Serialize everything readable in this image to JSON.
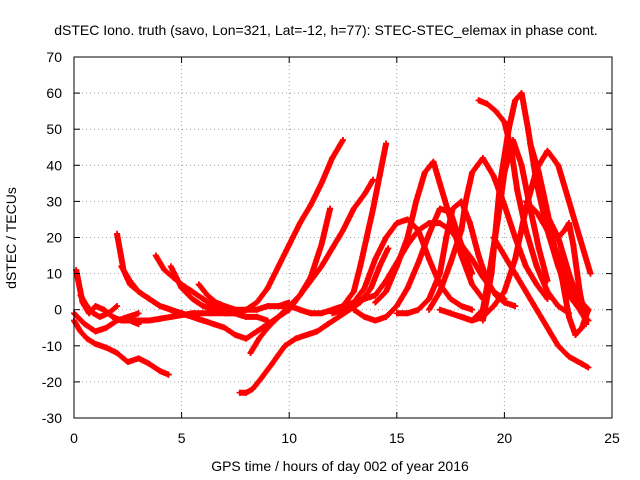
{
  "chart_data": {
    "type": "scatter",
    "title": "dSTEC Iono. truth (savo, Lon=321, Lat=-12, h=77): STEC-STEC_elemax in phase cont.",
    "xlabel": "GPS time / hours of day 002 of year 2016",
    "ylabel": "dSTEC  / TECUs",
    "xlim": [
      0,
      25
    ],
    "ylim": [
      -30,
      70
    ],
    "xticks": [
      "0",
      "5",
      "10",
      "15",
      "20",
      "25"
    ],
    "yticks": [
      "-30",
      "-20",
      "-10",
      "0",
      "10",
      "20",
      "30",
      "40",
      "50",
      "60",
      "70"
    ],
    "grid": true,
    "marker": "plus",
    "color": "#ff0000",
    "series": [
      {
        "x": [
          0.0,
          0.3,
          0.6,
          1.0,
          1.5,
          2.0,
          2.5,
          3.0,
          3.5,
          4.0,
          4.4
        ],
        "y": [
          -3,
          -6,
          -8,
          -9.5,
          -10.5,
          -12,
          -14.5,
          -13.5,
          -15,
          -17,
          -18
        ]
      },
      {
        "x": [
          0.1,
          0.2,
          0.4,
          0.7,
          1.0,
          1.4,
          1.8,
          2.2,
          2.6,
          3.0
        ],
        "y": [
          11,
          8,
          2,
          -1,
          1,
          0,
          -2,
          -3,
          -3,
          -4
        ]
      },
      {
        "x": [
          0.0,
          0.5,
          1.0,
          1.5,
          2.0,
          2.5,
          3.0
        ],
        "y": [
          -1,
          -4,
          -6,
          -5,
          -3,
          -2,
          -1
        ]
      },
      {
        "x": [
          0.3,
          0.6,
          0.9,
          1.2,
          1.6,
          2.0
        ],
        "y": [
          4,
          1,
          -1,
          -2,
          -1,
          1
        ]
      },
      {
        "x": [
          2.0,
          2.3,
          2.6,
          3.0,
          3.5,
          4.0,
          4.5,
          5.0,
          5.5,
          6.0
        ],
        "y": [
          21,
          11,
          7,
          5,
          3,
          1,
          0,
          -1,
          -2,
          -3
        ]
      },
      {
        "x": [
          2.2,
          2.6,
          3.0,
          3.5,
          4.0,
          4.5,
          5.0,
          5.5,
          6.0
        ],
        "y": [
          12,
          8,
          5,
          3,
          1,
          0,
          -1,
          -2,
          -3
        ]
      },
      {
        "x": [
          3.8,
          4.2,
          4.6,
          5.0,
          5.5,
          6.0,
          6.5,
          7.0,
          7.5,
          8.0
        ],
        "y": [
          15,
          11,
          9,
          7,
          5,
          3,
          1,
          0,
          -1,
          -2
        ]
      },
      {
        "x": [
          4.5,
          5.0,
          5.5,
          6.0,
          6.5,
          7.0,
          7.5,
          8.0,
          8.5,
          9.0
        ],
        "y": [
          12,
          6,
          3,
          1,
          0,
          -1,
          -1,
          -2,
          -2,
          -3
        ]
      },
      {
        "x": [
          2.5,
          3.0,
          3.5,
          4.0,
          4.5,
          5.0,
          5.5,
          6.0,
          6.5,
          7.0,
          7.5,
          8.0,
          8.5,
          9.0,
          9.5,
          10.0
        ],
        "y": [
          -3,
          -3,
          -3,
          -2.5,
          -2,
          -1.5,
          -1,
          -1,
          -1,
          -1,
          -1,
          0,
          0,
          1,
          1,
          2
        ]
      },
      {
        "x": [
          5.8,
          6.2,
          6.6,
          7.0,
          7.5,
          8.0,
          8.5,
          9.0,
          9.5,
          10.0,
          10.5,
          11.0,
          11.5,
          12.0,
          12.5
        ],
        "y": [
          7,
          4,
          2,
          1,
          0,
          0,
          2,
          6,
          12,
          18,
          24,
          29,
          35,
          42,
          47
        ]
      },
      {
        "x": [
          7.7,
          8.0,
          8.3,
          8.7,
          9.2,
          9.8,
          10.3,
          10.8,
          11.3,
          11.8,
          12.3,
          12.8,
          13.3,
          13.8,
          14.2,
          14.6
        ],
        "y": [
          -23,
          -23,
          -22,
          -19,
          -15,
          -10,
          -8,
          -7,
          -6,
          -4,
          -2,
          0,
          2,
          6,
          12,
          17
        ]
      },
      {
        "x": [
          6.0,
          6.5,
          7.0,
          7.5,
          8.0,
          8.5,
          9.0,
          9.5,
          10.0,
          10.5,
          11.0,
          11.5,
          11.9
        ],
        "y": [
          -3,
          -4,
          -5,
          -7,
          -8,
          -6,
          -4,
          -2,
          0,
          4,
          9,
          18,
          28
        ]
      },
      {
        "x": [
          8.2,
          8.6,
          9.0,
          9.5,
          10.0,
          10.5,
          11.0,
          11.5,
          12.0,
          12.5,
          13.0,
          13.5,
          13.9
        ],
        "y": [
          -12,
          -8,
          -5,
          -2,
          1,
          4,
          8,
          12,
          17,
          22,
          28,
          32,
          36
        ]
      },
      {
        "x": [
          9.5,
          10.0,
          10.5,
          11.0,
          11.5,
          12.0,
          12.5,
          13.0,
          13.3,
          13.6,
          13.9,
          14.2,
          14.5
        ],
        "y": [
          1,
          1,
          0,
          -1,
          -1,
          0,
          1,
          5,
          12,
          20,
          28,
          37,
          46
        ]
      },
      {
        "x": [
          12.0,
          12.5,
          13.0,
          13.5,
          14.0,
          14.5,
          15.0,
          15.5,
          16.0,
          16.5,
          17.0,
          17.5,
          18.0,
          18.5
        ],
        "y": [
          -1,
          0,
          2,
          6,
          14,
          20,
          24,
          25,
          22,
          14,
          7,
          3,
          1,
          0
        ]
      },
      {
        "x": [
          13.0,
          13.5,
          14.0,
          14.5,
          15.0,
          15.5,
          16.0,
          16.5,
          17.0,
          17.5,
          18.0,
          18.5
        ],
        "y": [
          0,
          -2,
          -3,
          -2,
          1,
          6,
          13,
          21,
          28,
          27,
          18,
          10
        ]
      },
      {
        "x": [
          14.0,
          14.5,
          15.0,
          15.5,
          15.9,
          16.3,
          16.7,
          17.0,
          17.5,
          18.0,
          18.5,
          19.0
        ],
        "y": [
          2,
          5,
          12,
          20,
          30,
          38,
          41,
          35,
          25,
          15,
          7,
          3
        ]
      },
      {
        "x": [
          12.5,
          13.0,
          13.5,
          14.0,
          14.5,
          15.0,
          15.5,
          16.0,
          16.5,
          17.0,
          17.5,
          18.0,
          18.5,
          19.0,
          19.5,
          20.0
        ],
        "y": [
          1,
          2,
          3,
          4,
          8,
          13,
          18,
          22,
          24,
          24,
          22,
          18,
          14,
          9,
          5,
          3
        ]
      },
      {
        "x": [
          15.0,
          15.5,
          16.0,
          16.5,
          17.0,
          17.3,
          17.6,
          18.0,
          18.4,
          18.8,
          19.2,
          19.6,
          20.0,
          20.5
        ],
        "y": [
          -1,
          -1,
          0,
          3,
          10,
          20,
          28,
          30,
          24,
          15,
          8,
          4,
          2,
          1
        ]
      },
      {
        "x": [
          16.5,
          17.0,
          17.5,
          18.0,
          18.2,
          18.5,
          19.0,
          19.5,
          20.0,
          20.5,
          21.0,
          21.5,
          22.0
        ],
        "y": [
          0,
          5,
          13,
          22,
          30,
          38,
          42,
          37,
          29,
          20,
          12,
          7,
          3
        ]
      },
      {
        "x": [
          17.0,
          17.5,
          18.0,
          18.5,
          19.0,
          19.3,
          19.7,
          20.0,
          20.4,
          20.8,
          21.2,
          21.6,
          22.0
        ],
        "y": [
          0,
          -1,
          -2,
          -3,
          0,
          10,
          25,
          38,
          47,
          40,
          28,
          17,
          8
        ]
      },
      {
        "x": [
          18.0,
          18.5,
          19.0,
          19.5,
          20.0,
          20.5,
          21.0,
          21.5,
          22.0,
          22.5,
          23.0,
          23.5,
          24.0
        ],
        "y": [
          -2,
          -3,
          -2,
          1,
          5,
          14,
          28,
          39,
          44,
          40,
          30,
          20,
          10
        ]
      },
      {
        "x": [
          18.8,
          19.2,
          19.6,
          20.0,
          20.3,
          20.6,
          21.0,
          21.5,
          22.0,
          22.5,
          23.0
        ],
        "y": [
          58,
          57,
          55,
          52,
          45,
          33,
          22,
          12,
          5,
          1,
          -1
        ]
      },
      {
        "x": [
          19.0,
          19.4,
          19.8,
          20.2,
          20.5,
          20.8,
          21.1,
          21.5,
          22.0,
          22.5,
          23.0,
          23.5,
          23.8
        ],
        "y": [
          -3,
          10,
          35,
          50,
          58,
          60,
          50,
          35,
          22,
          12,
          4,
          0,
          -3
        ]
      },
      {
        "x": [
          19.5,
          20.0,
          20.5,
          21.0,
          21.5,
          22.0,
          22.5,
          23.0,
          23.3,
          23.6,
          23.9
        ],
        "y": [
          20,
          15,
          10,
          5,
          0,
          -5,
          -10,
          -13,
          -14,
          -15,
          -16
        ]
      },
      {
        "x": [
          21.2,
          21.6,
          22.0,
          22.3,
          22.7,
          23.0,
          23.3,
          23.6,
          23.9
        ],
        "y": [
          46,
          38,
          27,
          18,
          8,
          -2,
          -7,
          -5,
          0
        ]
      },
      {
        "x": [
          21.0,
          21.5,
          22.0,
          22.5,
          23.0,
          23.3,
          23.6,
          23.9
        ],
        "y": [
          30,
          27,
          22,
          15,
          8,
          3,
          -1,
          -3
        ]
      },
      {
        "x": [
          22.0,
          22.5,
          23.0,
          23.3,
          23.6,
          23.9
        ],
        "y": [
          26,
          20,
          10,
          5,
          2,
          0
        ]
      },
      {
        "x": [
          22.5,
          22.8,
          23.0,
          23.2,
          23.5,
          23.8
        ],
        "y": [
          20,
          22,
          24,
          18,
          5,
          -4
        ]
      }
    ]
  }
}
